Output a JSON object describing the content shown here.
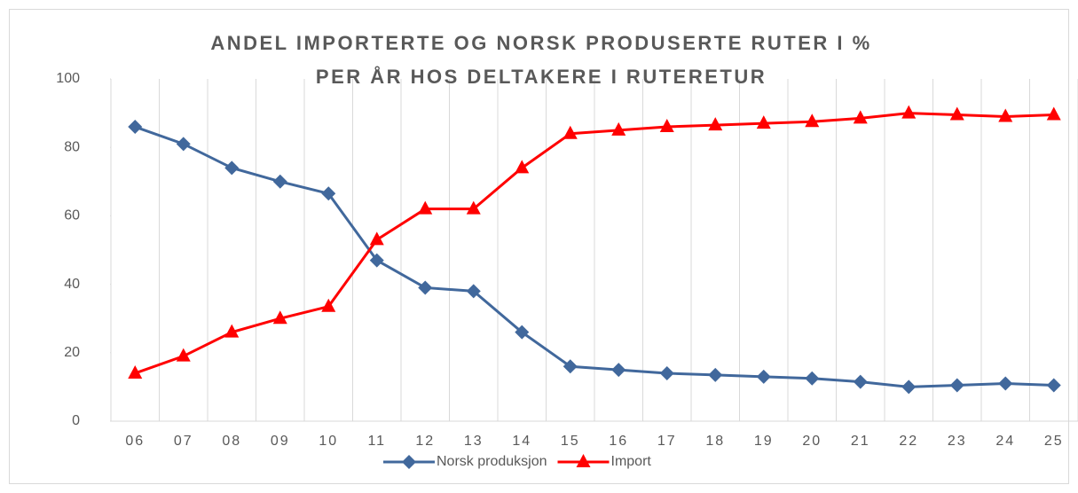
{
  "chart_data": {
    "type": "line",
    "title": [
      "ANDEL IMPORTERTE OG NORSK PRODUSERTE RUTER I %",
      "PER ÅR HOS DELTAKERE I RUTERETUR"
    ],
    "categories": [
      "06",
      "07",
      "08",
      "09",
      "10",
      "11",
      "12",
      "13",
      "14",
      "15",
      "16",
      "17",
      "18",
      "19",
      "20",
      "21",
      "22",
      "23",
      "24",
      "25"
    ],
    "series": [
      {
        "name": "Norsk produksjon",
        "color": "#41689c",
        "marker": "diamond",
        "values": [
          86,
          81,
          74,
          70,
          66.5,
          47,
          39,
          38,
          26,
          16,
          15,
          14,
          13.5,
          13,
          12.5,
          11.5,
          10,
          10.5,
          11,
          10.5
        ]
      },
      {
        "name": "Import",
        "color": "#ff0000",
        "marker": "triangle",
        "values": [
          14,
          19,
          26,
          30,
          33.5,
          53,
          62,
          62,
          74,
          84,
          85,
          86,
          86.5,
          87,
          87.5,
          88.5,
          90,
          89.5,
          89,
          89.5
        ]
      }
    ],
    "ylim": [
      0,
      100
    ],
    "yticks": [
      0,
      20,
      40,
      60,
      80,
      100
    ],
    "grid": "vertical",
    "legend": "bottom"
  }
}
